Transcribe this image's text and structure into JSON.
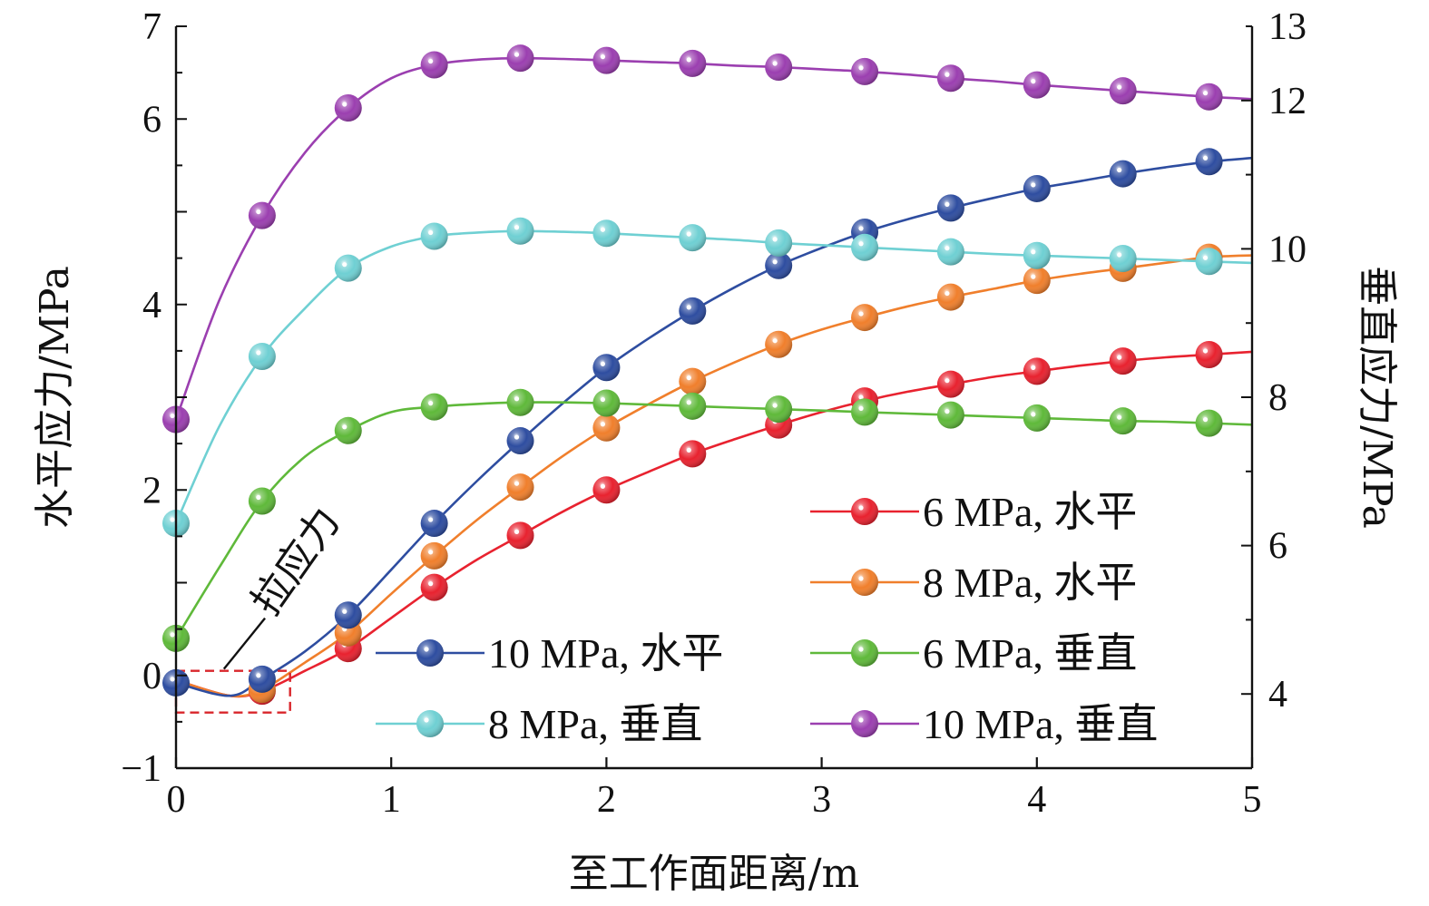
{
  "chart_data": {
    "type": "line",
    "xlabel": "至工作面距离/m",
    "ylabel_left": "水平应力/MPa",
    "ylabel_right": "垂直应力/MPa",
    "xlim": [
      0,
      5
    ],
    "ylim_left": [
      -1,
      7
    ],
    "ylim_right": [
      3,
      13
    ],
    "x_ticks": [
      0,
      1,
      2,
      3,
      4,
      5
    ],
    "x_tick_labels": [
      "0",
      "1",
      "2",
      "3",
      "4",
      "5"
    ],
    "y_left_ticks": [
      -1,
      0,
      2,
      4,
      6,
      7
    ],
    "y_left_tick_labels": [
      "−1",
      "0",
      "2",
      "4",
      "6",
      "7"
    ],
    "y_right_ticks": [
      4,
      6,
      8,
      10,
      12,
      13
    ],
    "y_right_tick_labels": [
      "4",
      "6",
      "8",
      "10",
      "12",
      "13"
    ],
    "annotation": {
      "text": "拉应力",
      "x_range": [
        0,
        0.53
      ],
      "y_range": [
        -0.4,
        0.05
      ]
    },
    "legend_placement": "bottom-right",
    "grid": false,
    "series": [
      {
        "name": "6 MPa, 水平",
        "axis": "left",
        "color": "#e8222f",
        "x": [
          0,
          0.25,
          0.4,
          0.6,
          0.8,
          1.0,
          1.2,
          1.4,
          1.6,
          1.8,
          2.0,
          2.2,
          2.4,
          2.6,
          2.8,
          3.0,
          3.2,
          3.4,
          3.6,
          3.8,
          4.0,
          4.2,
          4.4,
          4.6,
          4.8,
          5.0
        ],
        "values": [
          -0.05,
          -0.22,
          -0.17,
          0.05,
          0.29,
          0.62,
          0.95,
          1.25,
          1.51,
          1.77,
          2.0,
          2.2,
          2.39,
          2.55,
          2.7,
          2.84,
          2.96,
          3.06,
          3.14,
          3.22,
          3.28,
          3.34,
          3.39,
          3.43,
          3.46,
          3.49
        ],
        "markers_x": [
          0.4,
          0.8,
          1.2,
          1.6,
          2.0,
          2.4,
          2.8,
          3.2,
          3.6,
          4.0,
          4.4,
          4.8
        ]
      },
      {
        "name": "8 MPa, 水平",
        "axis": "left",
        "color": "#f07f2c",
        "x": [
          0,
          0.25,
          0.4,
          0.6,
          0.8,
          1.0,
          1.2,
          1.4,
          1.6,
          1.8,
          2.0,
          2.2,
          2.4,
          2.6,
          2.8,
          3.0,
          3.2,
          3.4,
          3.6,
          3.8,
          4.0,
          4.2,
          4.4,
          4.6,
          4.8,
          5.0
        ],
        "values": [
          -0.05,
          -0.22,
          -0.15,
          0.14,
          0.46,
          0.88,
          1.29,
          1.68,
          2.03,
          2.37,
          2.67,
          2.93,
          3.17,
          3.38,
          3.57,
          3.73,
          3.86,
          3.98,
          4.08,
          4.17,
          4.26,
          4.33,
          4.39,
          4.45,
          4.51,
          4.53
        ],
        "markers_x": [
          0.4,
          0.8,
          1.2,
          1.6,
          2.0,
          2.4,
          2.8,
          3.2,
          3.6,
          4.0,
          4.4,
          4.8
        ]
      },
      {
        "name": "10 MPa, 水平",
        "axis": "left",
        "color": "#2e4da0",
        "x": [
          0,
          0.25,
          0.4,
          0.6,
          0.8,
          1.0,
          1.2,
          1.4,
          1.6,
          1.8,
          2.0,
          2.2,
          2.4,
          2.6,
          2.8,
          3.0,
          3.2,
          3.4,
          3.6,
          3.8,
          4.0,
          4.2,
          4.4,
          4.6,
          4.8,
          5.0
        ],
        "values": [
          -0.08,
          -0.22,
          -0.04,
          0.26,
          0.65,
          1.14,
          1.64,
          2.1,
          2.53,
          2.94,
          3.32,
          3.64,
          3.93,
          4.19,
          4.42,
          4.61,
          4.78,
          4.92,
          5.04,
          5.15,
          5.25,
          5.33,
          5.41,
          5.48,
          5.54,
          5.58
        ],
        "markers_x": [
          0,
          0.4,
          0.8,
          1.2,
          1.6,
          2.0,
          2.4,
          2.8,
          3.2,
          3.6,
          4.0,
          4.4,
          4.8
        ]
      },
      {
        "name": "6 MPa, 垂直",
        "axis": "right",
        "color": "#5fb93a",
        "x": [
          0,
          0.2,
          0.4,
          0.6,
          0.8,
          1.0,
          1.2,
          1.4,
          1.6,
          1.8,
          2.0,
          2.2,
          2.4,
          2.6,
          2.8,
          3.0,
          3.2,
          3.4,
          3.6,
          3.8,
          4.0,
          4.2,
          4.4,
          4.6,
          4.8,
          5.0
        ],
        "values": [
          4.75,
          5.7,
          6.6,
          7.2,
          7.55,
          7.8,
          7.87,
          7.91,
          7.93,
          7.93,
          7.92,
          7.9,
          7.88,
          7.86,
          7.84,
          7.82,
          7.8,
          7.78,
          7.76,
          7.74,
          7.72,
          7.7,
          7.68,
          7.67,
          7.65,
          7.63
        ],
        "markers_x": [
          0,
          0.4,
          0.8,
          1.2,
          1.6,
          2.0,
          2.4,
          2.8,
          3.2,
          3.6,
          4.0,
          4.4,
          4.8
        ]
      },
      {
        "name": "8 MPa, 垂直",
        "axis": "right",
        "color": "#6fd0d3",
        "x": [
          0,
          0.2,
          0.4,
          0.6,
          0.8,
          1.0,
          1.2,
          1.4,
          1.6,
          1.8,
          2.0,
          2.2,
          2.4,
          2.6,
          2.8,
          3.0,
          3.2,
          3.4,
          3.6,
          3.8,
          4.0,
          4.2,
          4.4,
          4.6,
          4.8,
          5.0
        ],
        "values": [
          6.3,
          7.6,
          8.55,
          9.2,
          9.74,
          10.03,
          10.17,
          10.22,
          10.24,
          10.23,
          10.21,
          10.18,
          10.15,
          10.12,
          10.08,
          10.05,
          10.02,
          9.99,
          9.96,
          9.93,
          9.91,
          9.89,
          9.87,
          9.85,
          9.83,
          9.81
        ],
        "markers_x": [
          0,
          0.4,
          0.8,
          1.2,
          1.6,
          2.0,
          2.4,
          2.8,
          3.2,
          3.6,
          4.0,
          4.4,
          4.8
        ]
      },
      {
        "name": "10 MPa, 垂直",
        "axis": "right",
        "color": "#9b3fb0",
        "x": [
          0,
          0.2,
          0.4,
          0.6,
          0.8,
          1.0,
          1.2,
          1.4,
          1.6,
          1.8,
          2.0,
          2.2,
          2.4,
          2.6,
          2.8,
          3.0,
          3.2,
          3.4,
          3.6,
          3.8,
          4.0,
          4.2,
          4.4,
          4.6,
          4.8,
          5.0
        ],
        "values": [
          7.7,
          9.3,
          10.45,
          11.3,
          11.9,
          12.3,
          12.48,
          12.55,
          12.57,
          12.56,
          12.54,
          12.52,
          12.5,
          12.47,
          12.45,
          12.42,
          12.39,
          12.35,
          12.3,
          12.26,
          12.21,
          12.17,
          12.13,
          12.09,
          12.05,
          12.02
        ],
        "markers_x": [
          0,
          0.4,
          0.8,
          1.2,
          1.6,
          2.0,
          2.4,
          2.8,
          3.2,
          3.6,
          4.0,
          4.4,
          4.8
        ]
      }
    ]
  }
}
